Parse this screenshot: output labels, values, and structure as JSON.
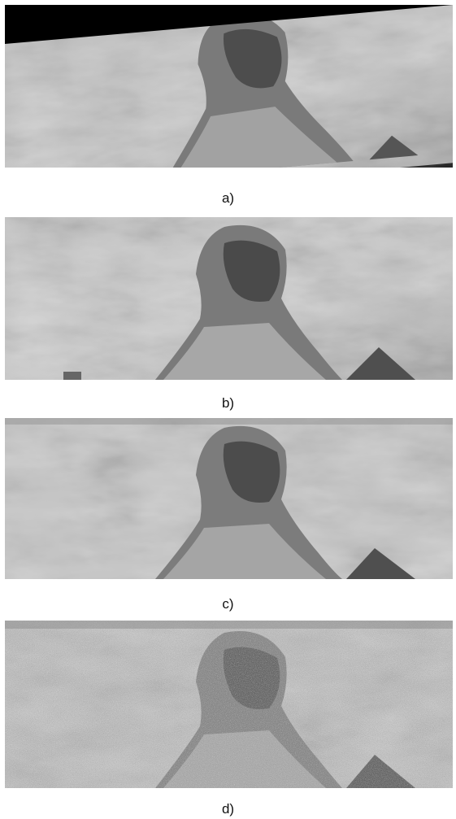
{
  "figure": {
    "panels": [
      {
        "id": "a",
        "caption": "a)",
        "variant": "rotated-original"
      },
      {
        "id": "b",
        "caption": "b)",
        "variant": "restored"
      },
      {
        "id": "c",
        "caption": "c)",
        "variant": "salt-and-pepper-noise"
      },
      {
        "id": "d",
        "caption": "d)",
        "variant": "gaussian-noise"
      }
    ]
  }
}
